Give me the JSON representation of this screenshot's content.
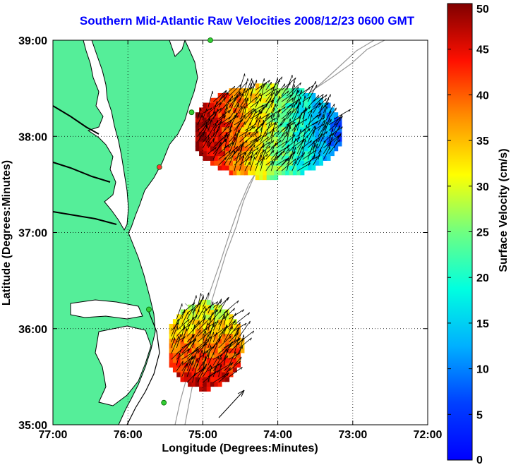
{
  "chart_data": {
    "type": "vector-field-map",
    "title": "Southern Mid-Atlantic Raw Velocities 2008/12/23 0600 GMT",
    "xlabel": "Longitude (Degrees:Minutes)",
    "ylabel": "Latitude (Degrees:Minutes)",
    "xlim": [
      -77,
      -72
    ],
    "ylim": [
      35,
      39
    ],
    "x_ticks": [
      {
        "value": -77,
        "label": "77:00"
      },
      {
        "value": -76,
        "label": "76:00"
      },
      {
        "value": -75,
        "label": "75:00"
      },
      {
        "value": -74,
        "label": "74:00"
      },
      {
        "value": -73,
        "label": "73:00"
      },
      {
        "value": -72,
        "label": "72:00"
      }
    ],
    "y_ticks": [
      {
        "value": 35,
        "label": "35:00"
      },
      {
        "value": 36,
        "label": "36:00"
      },
      {
        "value": 37,
        "label": "37:00"
      },
      {
        "value": 38,
        "label": "38:00"
      },
      {
        "value": 39,
        "label": "39:00"
      }
    ],
    "grid": true,
    "colorbar": {
      "label": "Surface Velocity (cm/s)",
      "range": [
        0,
        50
      ],
      "ticks": [
        {
          "value": 0,
          "label": "0"
        },
        {
          "value": 5,
          "label": "5"
        },
        {
          "value": 10,
          "label": "10"
        },
        {
          "value": 15,
          "label": "15"
        },
        {
          "value": 20,
          "label": "20"
        },
        {
          "value": 25,
          "label": "25"
        },
        {
          "value": 30,
          "label": "30"
        },
        {
          "value": 35,
          "label": "35"
        },
        {
          "value": 40,
          "label": "40"
        },
        {
          "value": 45,
          "label": "45"
        },
        {
          "value": 50,
          "label": "50"
        }
      ],
      "colormap": "jet"
    },
    "velocity_regions": [
      {
        "name": "northern",
        "lon_range": [
          -75.1,
          -73.2
        ],
        "lat_range": [
          37.55,
          38.55
        ],
        "direction": "north-east",
        "speed_west": 50,
        "speed_east": 8
      },
      {
        "name": "southern",
        "lon_range": [
          -75.45,
          -74.5
        ],
        "lat_range": [
          35.35,
          36.3
        ],
        "direction": "north-east",
        "speed_north": 27,
        "speed_south": 48
      }
    ],
    "stations": [
      {
        "lon": -74.9,
        "lat": 39.0,
        "color": "#33cc33"
      },
      {
        "lon": -75.15,
        "lat": 38.25,
        "color": "#33cc33"
      },
      {
        "lon": -75.58,
        "lat": 37.68,
        "color": "#ff3333"
      },
      {
        "lon": -75.72,
        "lat": 36.2,
        "color": "#33cc33"
      },
      {
        "lon": -75.52,
        "lat": 35.23,
        "color": "#33cc33"
      }
    ],
    "reference_arrow_speed": 50
  },
  "colors": {
    "land": "#55ee99",
    "coast": "#000000",
    "bathymetry": "#999999",
    "title": "#0000ff"
  }
}
